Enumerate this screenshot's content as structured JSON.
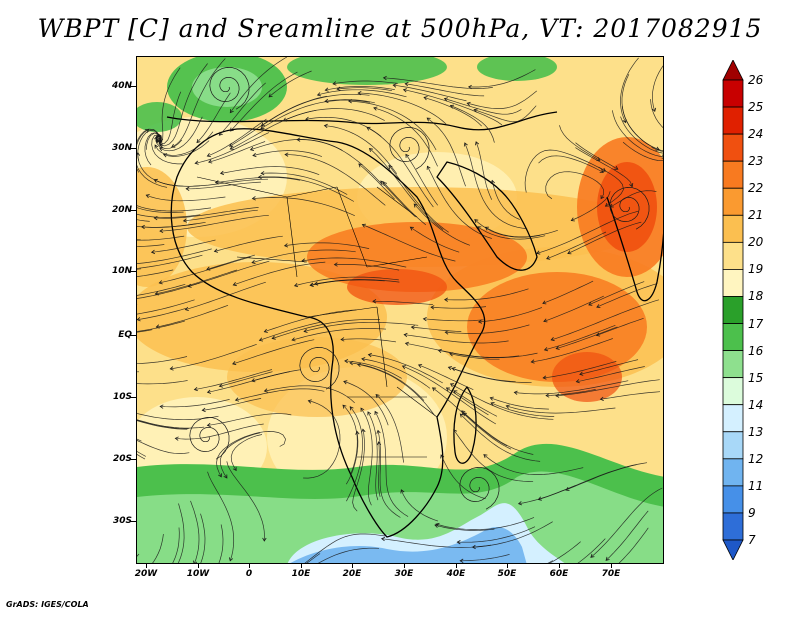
{
  "title": "WBPT [C] and Sreamline at 500hPa, VT: 2017082915",
  "footer": "GrADS: IGES/COLA",
  "lat_labels": [
    "40N",
    "30N",
    "20N",
    "10N",
    "EQ",
    "10S",
    "20S",
    "30S"
  ],
  "lon_labels": [
    "20W",
    "10W",
    "0",
    "10E",
    "20E",
    "30E",
    "40E",
    "50E",
    "60E",
    "70E"
  ],
  "colorbar": {
    "labels": [
      "26",
      "25",
      "24",
      "23",
      "22",
      "21",
      "20",
      "19",
      "18",
      "17",
      "16",
      "15",
      "14",
      "13",
      "12",
      "11",
      "9",
      "7"
    ],
    "colors": [
      "#a00000",
      "#c80000",
      "#e02000",
      "#f05010",
      "#f87a20",
      "#fa9a30",
      "#fbbf50",
      "#fde08a",
      "#fff5c0",
      "#2aa02a",
      "#4cc04c",
      "#8ee08e",
      "#dcfcdc",
      "#d4f0ff",
      "#a8d8f8",
      "#70b4f0",
      "#4690e8",
      "#2e6ed8",
      "#1e58c8"
    ]
  },
  "map_colors": {
    "base": "#fde08a",
    "light": "#fff5c0",
    "orange": "#fbbf50",
    "orange_deep": "#f87a20",
    "red": "#f05010",
    "green": "#4cc04c",
    "green_light": "#8ee08e",
    "blue": "#70b4f0",
    "blue_light": "#d4f0ff",
    "coast": "#000000",
    "stream": "#1a1a1a"
  }
}
